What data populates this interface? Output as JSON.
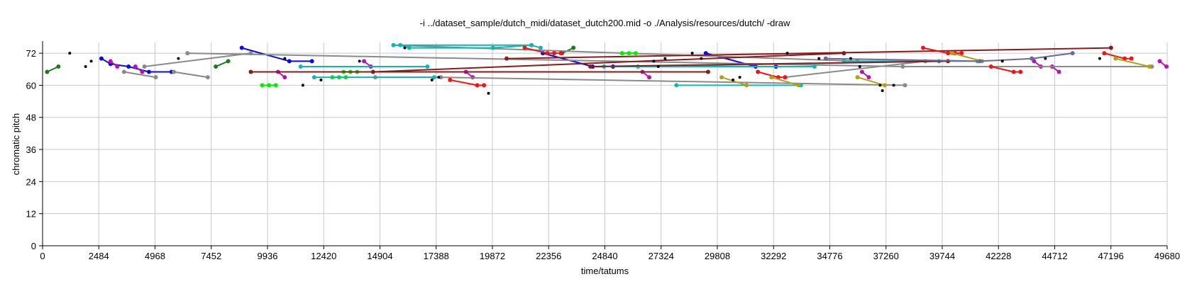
{
  "chart_data": {
    "type": "line",
    "title": "-i ../dataset_sample/dutch_midi/dataset_dutch200.mid -o ./Analysis/resources/dutch/ -draw",
    "xlabel": "time/tatums",
    "ylabel": "chromatic pitch",
    "xlim": [
      0,
      49680
    ],
    "ylim": [
      0,
      76
    ],
    "xticks": [
      0,
      2484,
      4968,
      7452,
      9936,
      12420,
      14904,
      17388,
      19872,
      22356,
      24840,
      27324,
      29808,
      32292,
      34776,
      37260,
      39744,
      42228,
      44712,
      47196,
      49680
    ],
    "yticks": [
      0,
      12,
      24,
      36,
      48,
      60,
      72
    ],
    "grid": true,
    "colors": {
      "green": "#00ee00",
      "darkgreen": "#1e7a1e",
      "blue": "#0a0ae6",
      "magenta": "#b414b4",
      "gray": "#8a8a8a",
      "cyan": "#14b4b4",
      "darkred": "#8b1a1a",
      "red": "#f01414",
      "olive": "#b4a014",
      "slate": "#6a6a9a",
      "black": "#000000"
    },
    "series": [
      {
        "color": "darkgreen",
        "points": [
          [
            200,
            65
          ],
          [
            700,
            67
          ]
        ]
      },
      {
        "color": "darkgreen",
        "points": [
          [
            7650,
            67
          ],
          [
            8200,
            69
          ]
        ]
      },
      {
        "color": "darkgreen",
        "points": [
          [
            22950,
            72
          ],
          [
            23450,
            74
          ]
        ]
      },
      {
        "color": "blue",
        "points": [
          [
            2600,
            70
          ],
          [
            3000,
            68
          ],
          [
            3800,
            67
          ],
          [
            4700,
            65
          ],
          [
            5700,
            65
          ]
        ]
      },
      {
        "color": "blue",
        "points": [
          [
            8800,
            74
          ],
          [
            10900,
            69
          ],
          [
            11900,
            69
          ]
        ]
      },
      {
        "color": "blue",
        "points": [
          [
            22100,
            72
          ],
          [
            24300,
            67
          ],
          [
            25200,
            67
          ]
        ]
      },
      {
        "color": "blue",
        "points": [
          [
            29300,
            72
          ],
          [
            31500,
            67
          ],
          [
            32400,
            67
          ]
        ]
      },
      {
        "color": "magenta",
        "points": [
          [
            3000,
            69
          ],
          [
            3300,
            67
          ]
        ]
      },
      {
        "color": "magenta",
        "points": [
          [
            4100,
            67
          ],
          [
            4400,
            65
          ]
        ]
      },
      {
        "color": "magenta",
        "points": [
          [
            10400,
            65
          ],
          [
            10700,
            63
          ]
        ]
      },
      {
        "color": "magenta",
        "points": [
          [
            14200,
            69
          ],
          [
            14500,
            67
          ]
        ]
      },
      {
        "color": "magenta",
        "points": [
          [
            18700,
            65
          ],
          [
            19000,
            63
          ]
        ]
      },
      {
        "color": "magenta",
        "points": [
          [
            26500,
            65
          ],
          [
            26800,
            63
          ]
        ]
      },
      {
        "color": "magenta",
        "points": [
          [
            36200,
            65
          ],
          [
            36500,
            63
          ]
        ]
      },
      {
        "color": "magenta",
        "points": [
          [
            43800,
            69
          ],
          [
            44100,
            67
          ]
        ]
      },
      {
        "color": "magenta",
        "points": [
          [
            44600,
            67
          ],
          [
            44900,
            65
          ]
        ]
      },
      {
        "color": "magenta",
        "points": [
          [
            49350,
            69
          ],
          [
            49650,
            67
          ]
        ]
      },
      {
        "color": "gray",
        "points": [
          [
            3600,
            65
          ],
          [
            5000,
            63
          ]
        ]
      },
      {
        "color": "gray",
        "points": [
          [
            4500,
            67
          ],
          [
            9200,
            72
          ]
        ]
      },
      {
        "color": "gray",
        "points": [
          [
            6400,
            72
          ],
          [
            38000,
            67
          ],
          [
            49000,
            67
          ]
        ]
      },
      {
        "color": "gray",
        "points": [
          [
            5800,
            65
          ],
          [
            7300,
            63
          ]
        ]
      },
      {
        "color": "gray",
        "points": [
          [
            14700,
            63
          ],
          [
            17600,
            63
          ],
          [
            38100,
            60
          ]
        ]
      },
      {
        "color": "gray",
        "points": [
          [
            15500,
            75
          ],
          [
            36000,
            69
          ]
        ]
      },
      {
        "color": "gray",
        "points": [
          [
            32800,
            63
          ],
          [
            39000,
            69
          ]
        ]
      },
      {
        "color": "green",
        "points": [
          [
            9700,
            60
          ],
          [
            10000,
            60
          ],
          [
            10300,
            60
          ]
        ]
      },
      {
        "color": "green",
        "points": [
          [
            12800,
            63
          ],
          [
            13100,
            63
          ],
          [
            13400,
            63
          ]
        ]
      },
      {
        "color": "green",
        "points": [
          [
            13300,
            65
          ],
          [
            13600,
            65
          ],
          [
            13900,
            65
          ]
        ]
      },
      {
        "color": "green",
        "points": [
          [
            25600,
            72
          ],
          [
            25900,
            72
          ],
          [
            26200,
            72
          ]
        ]
      },
      {
        "color": "cyan",
        "points": [
          [
            15800,
            75
          ],
          [
            16200,
            74
          ],
          [
            19900,
            74
          ],
          [
            21600,
            75
          ],
          [
            22000,
            74
          ]
        ]
      },
      {
        "color": "cyan",
        "points": [
          [
            15500,
            75
          ],
          [
            21600,
            75
          ]
        ]
      },
      {
        "color": "cyan",
        "points": [
          [
            11400,
            67
          ],
          [
            17000,
            67
          ]
        ]
      },
      {
        "color": "cyan",
        "points": [
          [
            12000,
            63
          ],
          [
            17300,
            63
          ]
        ]
      },
      {
        "color": "cyan",
        "points": [
          [
            24800,
            67
          ],
          [
            34100,
            67
          ]
        ]
      },
      {
        "color": "cyan",
        "points": [
          [
            26300,
            67
          ],
          [
            39600,
            69
          ]
        ]
      },
      {
        "color": "cyan",
        "points": [
          [
            35400,
            69
          ],
          [
            41300,
            69
          ]
        ]
      },
      {
        "color": "cyan",
        "points": [
          [
            28000,
            60
          ],
          [
            33500,
            60
          ]
        ]
      },
      {
        "color": "darkred",
        "points": [
          [
            9200,
            65
          ],
          [
            29400,
            65
          ]
        ]
      },
      {
        "color": "darkred",
        "points": [
          [
            14600,
            65
          ],
          [
            35400,
            72
          ]
        ]
      },
      {
        "color": "darkred",
        "points": [
          [
            20500,
            70
          ],
          [
            47200,
            74
          ]
        ]
      },
      {
        "color": "darkred",
        "points": [
          [
            24200,
            67
          ],
          [
            40000,
            69
          ]
        ]
      },
      {
        "color": "red",
        "points": [
          [
            21300,
            74
          ],
          [
            22300,
            72
          ],
          [
            22600,
            72
          ],
          [
            22900,
            72
          ]
        ]
      },
      {
        "color": "red",
        "points": [
          [
            18000,
            62
          ],
          [
            19200,
            60
          ],
          [
            19500,
            60
          ]
        ]
      },
      {
        "color": "red",
        "points": [
          [
            31600,
            65
          ],
          [
            32500,
            63
          ],
          [
            32800,
            63
          ]
        ]
      },
      {
        "color": "red",
        "points": [
          [
            38900,
            74
          ],
          [
            40000,
            72
          ],
          [
            40300,
            72
          ],
          [
            40600,
            72
          ]
        ]
      },
      {
        "color": "red",
        "points": [
          [
            41900,
            67
          ],
          [
            42900,
            65
          ],
          [
            43200,
            65
          ]
        ]
      },
      {
        "color": "red",
        "points": [
          [
            46900,
            72
          ],
          [
            47800,
            70
          ],
          [
            48100,
            70
          ]
        ]
      },
      {
        "color": "olive",
        "points": [
          [
            30000,
            63
          ],
          [
            31100,
            60
          ]
        ]
      },
      {
        "color": "olive",
        "points": [
          [
            32200,
            63
          ],
          [
            33400,
            60
          ]
        ]
      },
      {
        "color": "olive",
        "points": [
          [
            36000,
            63
          ],
          [
            37200,
            60
          ]
        ]
      },
      {
        "color": "olive",
        "points": [
          [
            40200,
            72
          ],
          [
            41500,
            69
          ]
        ]
      },
      {
        "color": "olive",
        "points": [
          [
            47400,
            70
          ],
          [
            48900,
            67
          ]
        ]
      },
      {
        "color": "slate",
        "points": [
          [
            34600,
            70
          ],
          [
            41400,
            69
          ],
          [
            43700,
            70
          ],
          [
            45500,
            72
          ]
        ]
      }
    ],
    "extra_points": {
      "color": "black",
      "points": [
        [
          1200,
          72
        ],
        [
          1900,
          67
        ],
        [
          2150,
          69
        ],
        [
          6000,
          70
        ],
        [
          10700,
          70
        ],
        [
          11500,
          60
        ],
        [
          12300,
          62
        ],
        [
          14000,
          69
        ],
        [
          16000,
          74
        ],
        [
          17200,
          62
        ],
        [
          17500,
          63
        ],
        [
          19700,
          57
        ],
        [
          27000,
          69
        ],
        [
          27200,
          67
        ],
        [
          27500,
          70
        ],
        [
          28700,
          72
        ],
        [
          29100,
          70
        ],
        [
          30500,
          62
        ],
        [
          30800,
          63
        ],
        [
          32900,
          72
        ],
        [
          34300,
          70
        ],
        [
          35700,
          70
        ],
        [
          36100,
          67
        ],
        [
          37000,
          60
        ],
        [
          37100,
          58
        ],
        [
          37600,
          60
        ],
        [
          42400,
          69
        ],
        [
          44300,
          70
        ],
        [
          46700,
          70
        ]
      ]
    }
  }
}
